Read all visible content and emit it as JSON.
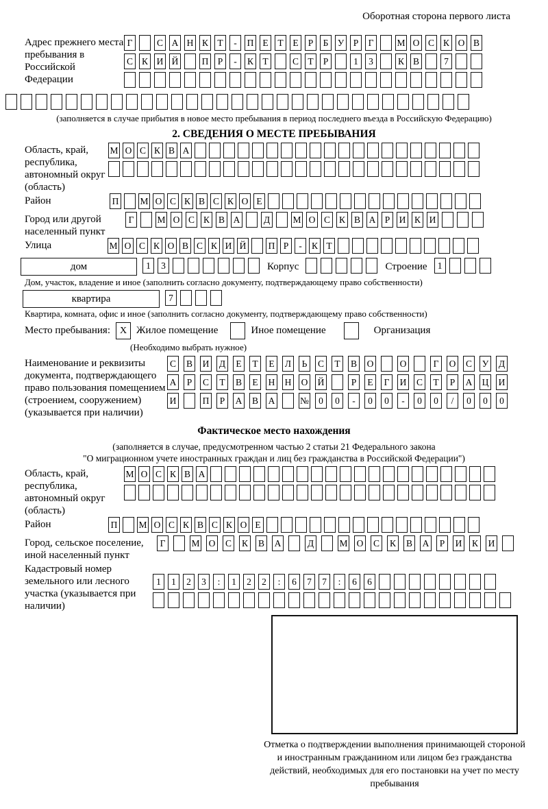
{
  "page": {
    "header_note": "Оборотная сторона первого листа"
  },
  "prev_address": {
    "label": "Адрес прежнего места пребывания в Российской Федерации",
    "row1": [
      "Г",
      "",
      "С",
      "А",
      "Н",
      "К",
      "Т",
      "-",
      "П",
      "Е",
      "Т",
      "Е",
      "Р",
      "Б",
      "У",
      "Р",
      "Г",
      "",
      "М",
      "О",
      "С",
      "К",
      "О",
      "В"
    ],
    "row2": [
      "С",
      "К",
      "И",
      "Й",
      "",
      "П",
      "Р",
      "-",
      "К",
      "Т",
      "",
      "С",
      "Т",
      "Р",
      "",
      "1",
      "3",
      "",
      "К",
      "В",
      "",
      "7",
      "",
      ""
    ],
    "row3": [
      "",
      "",
      "",
      "",
      "",
      "",
      "",
      "",
      "",
      "",
      "",
      "",
      "",
      "",
      "",
      "",
      "",
      "",
      "",
      "",
      "",
      "",
      "",
      ""
    ],
    "row4": [
      "",
      "",
      "",
      "",
      "",
      "",
      "",
      "",
      "",
      "",
      "",
      "",
      "",
      "",
      "",
      "",
      "",
      "",
      "",
      "",
      "",
      "",
      "",
      "",
      "",
      "",
      "",
      "",
      "",
      "",
      ""
    ],
    "note": "(заполняется в случае прибытия в новое место пребывания в период последнего въезда в Российскую Федерацию)"
  },
  "section2": {
    "title": "2. СВЕДЕНИЯ О МЕСТЕ ПРЕБЫВАНИЯ",
    "oblast": {
      "label": "Область, край, республика, автономный округ (область)",
      "row1": [
        "М",
        "О",
        "С",
        "К",
        "В",
        "А",
        "",
        "",
        "",
        "",
        "",
        "",
        "",
        "",
        "",
        "",
        "",
        "",
        "",
        "",
        "",
        "",
        "",
        "",
        "",
        ""
      ],
      "row2": [
        "",
        "",
        "",
        "",
        "",
        "",
        "",
        "",
        "",
        "",
        "",
        "",
        "",
        "",
        "",
        "",
        "",
        "",
        "",
        "",
        "",
        "",
        "",
        "",
        "",
        ""
      ]
    },
    "raion": {
      "label": "Район",
      "row": [
        "П",
        "",
        "М",
        "О",
        "С",
        "К",
        "В",
        "С",
        "К",
        "О",
        "Е",
        "",
        "",
        "",
        "",
        "",
        "",
        "",
        "",
        "",
        "",
        "",
        "",
        "",
        "",
        ""
      ]
    },
    "gorod": {
      "label": "Город или другой населенный пункт",
      "row": [
        "Г",
        "",
        "М",
        "О",
        "С",
        "К",
        "В",
        "А",
        "",
        "Д",
        "",
        "М",
        "О",
        "С",
        "К",
        "В",
        "А",
        "Р",
        "И",
        "К",
        "И",
        "",
        "",
        ""
      ]
    },
    "ulitsa": {
      "label": "Улица",
      "row": [
        "М",
        "О",
        "С",
        "К",
        "О",
        "В",
        "С",
        "К",
        "И",
        "Й",
        "",
        "П",
        "Р",
        "-",
        "К",
        "Т",
        "",
        "",
        "",
        "",
        "",
        "",
        "",
        "",
        "",
        ""
      ]
    },
    "dom": {
      "box_label": "дом",
      "cells": [
        "1",
        "3",
        "",
        "",
        "",
        "",
        "",
        ""
      ],
      "korpus_label": "Корпус",
      "korpus_cells": [
        "",
        "",
        "",
        "",
        ""
      ],
      "stroenie_label": "Строение",
      "stroenie_cells": [
        "1",
        "",
        "",
        ""
      ],
      "caption": "Дом, участок, владение и иное (заполнить согласно документу, подтверждающему право собственности)"
    },
    "kvartira": {
      "box_label": "квартира",
      "cells": [
        "7",
        "",
        "",
        ""
      ],
      "caption": "Квартира, комната, офис и иное (заполнить согласно документу, подтверждающему право собственности)"
    },
    "mesto": {
      "label": "Место пребывания:",
      "options": [
        {
          "label": "Жилое помещение",
          "mark": "X"
        },
        {
          "label": "Иное помещение",
          "mark": ""
        },
        {
          "label": "Организация",
          "mark": ""
        }
      ],
      "note": "(Необходимо выбрать нужное)"
    },
    "doc": {
      "label": "Наименование и реквизиты документа, подтверждающего право пользования помещением (строением, сооружением) (указывается при наличии)",
      "row1": [
        "С",
        "В",
        "И",
        "Д",
        "Е",
        "Т",
        "Е",
        "Л",
        "Ь",
        "С",
        "Т",
        "В",
        "О",
        "",
        "О",
        "",
        "Г",
        "О",
        "С",
        "У",
        "Д"
      ],
      "row2": [
        "А",
        "Р",
        "С",
        "Т",
        "В",
        "Е",
        "Н",
        "Н",
        "О",
        "Й",
        "",
        "Р",
        "Е",
        "Г",
        "И",
        "С",
        "Т",
        "Р",
        "А",
        "Ц",
        "И"
      ],
      "row3": [
        "И",
        "",
        "П",
        "Р",
        "А",
        "В",
        "А",
        "",
        "№",
        "0",
        "0",
        "-",
        "0",
        "0",
        "-",
        "0",
        "0",
        "/",
        "0",
        "0",
        "0"
      ]
    }
  },
  "fact": {
    "title": "Фактическое место нахождения",
    "note1": "(заполняется в случае, предусмотренном частью 2 статьи 21 Федерального закона",
    "note2": "\"О миграционном учете иностранных граждан и лиц без гражданства в Российской Федерации\")",
    "oblast": {
      "label": "Область, край, республика, автономный округ (область)",
      "row1": [
        "М",
        "О",
        "С",
        "К",
        "В",
        "А",
        "",
        "",
        "",
        "",
        "",
        "",
        "",
        "",
        "",
        "",
        "",
        "",
        "",
        "",
        "",
        "",
        "",
        "",
        "",
        ""
      ],
      "row2": [
        "",
        "",
        "",
        "",
        "",
        "",
        "",
        "",
        "",
        "",
        "",
        "",
        "",
        "",
        "",
        "",
        "",
        "",
        "",
        "",
        "",
        "",
        "",
        "",
        "",
        ""
      ]
    },
    "raion": {
      "label": "Район",
      "row": [
        "П",
        "",
        "М",
        "О",
        "С",
        "К",
        "В",
        "С",
        "К",
        "О",
        "Е",
        "",
        "",
        "",
        "",
        "",
        "",
        "",
        "",
        "",
        "",
        "",
        "",
        "",
        "",
        ""
      ]
    },
    "gorod": {
      "label": "Город, сельское поселение, иной населенный пункт",
      "row": [
        "Г",
        "",
        "М",
        "О",
        "С",
        "К",
        "В",
        "А",
        "",
        "Д",
        "",
        "М",
        "О",
        "С",
        "К",
        "В",
        "А",
        "Р",
        "И",
        "К",
        "И",
        ""
      ]
    },
    "cadastre": {
      "label": "Кадастровый номер земельного или лесного участка (указывается при наличии)",
      "row1": [
        "1",
        "1",
        "2",
        "3",
        ":",
        "1",
        "2",
        "2",
        ":",
        "6",
        "7",
        "7",
        ":",
        "6",
        "6",
        "",
        "",
        "",
        "",
        "",
        "",
        "",
        ""
      ],
      "row2": [
        "",
        "",
        "",
        "",
        "",
        "",
        "",
        "",
        "",
        "",
        "",
        "",
        "",
        "",
        "",
        "",
        "",
        "",
        "",
        "",
        "",
        "",
        "",
        ""
      ]
    },
    "stamp_caption": "Отметка о подтверждении выполнения принимающей стороной и иностранным гражданином или лицом без гражданства действий, необходимых для его постановки на учет по месту пребывания"
  }
}
